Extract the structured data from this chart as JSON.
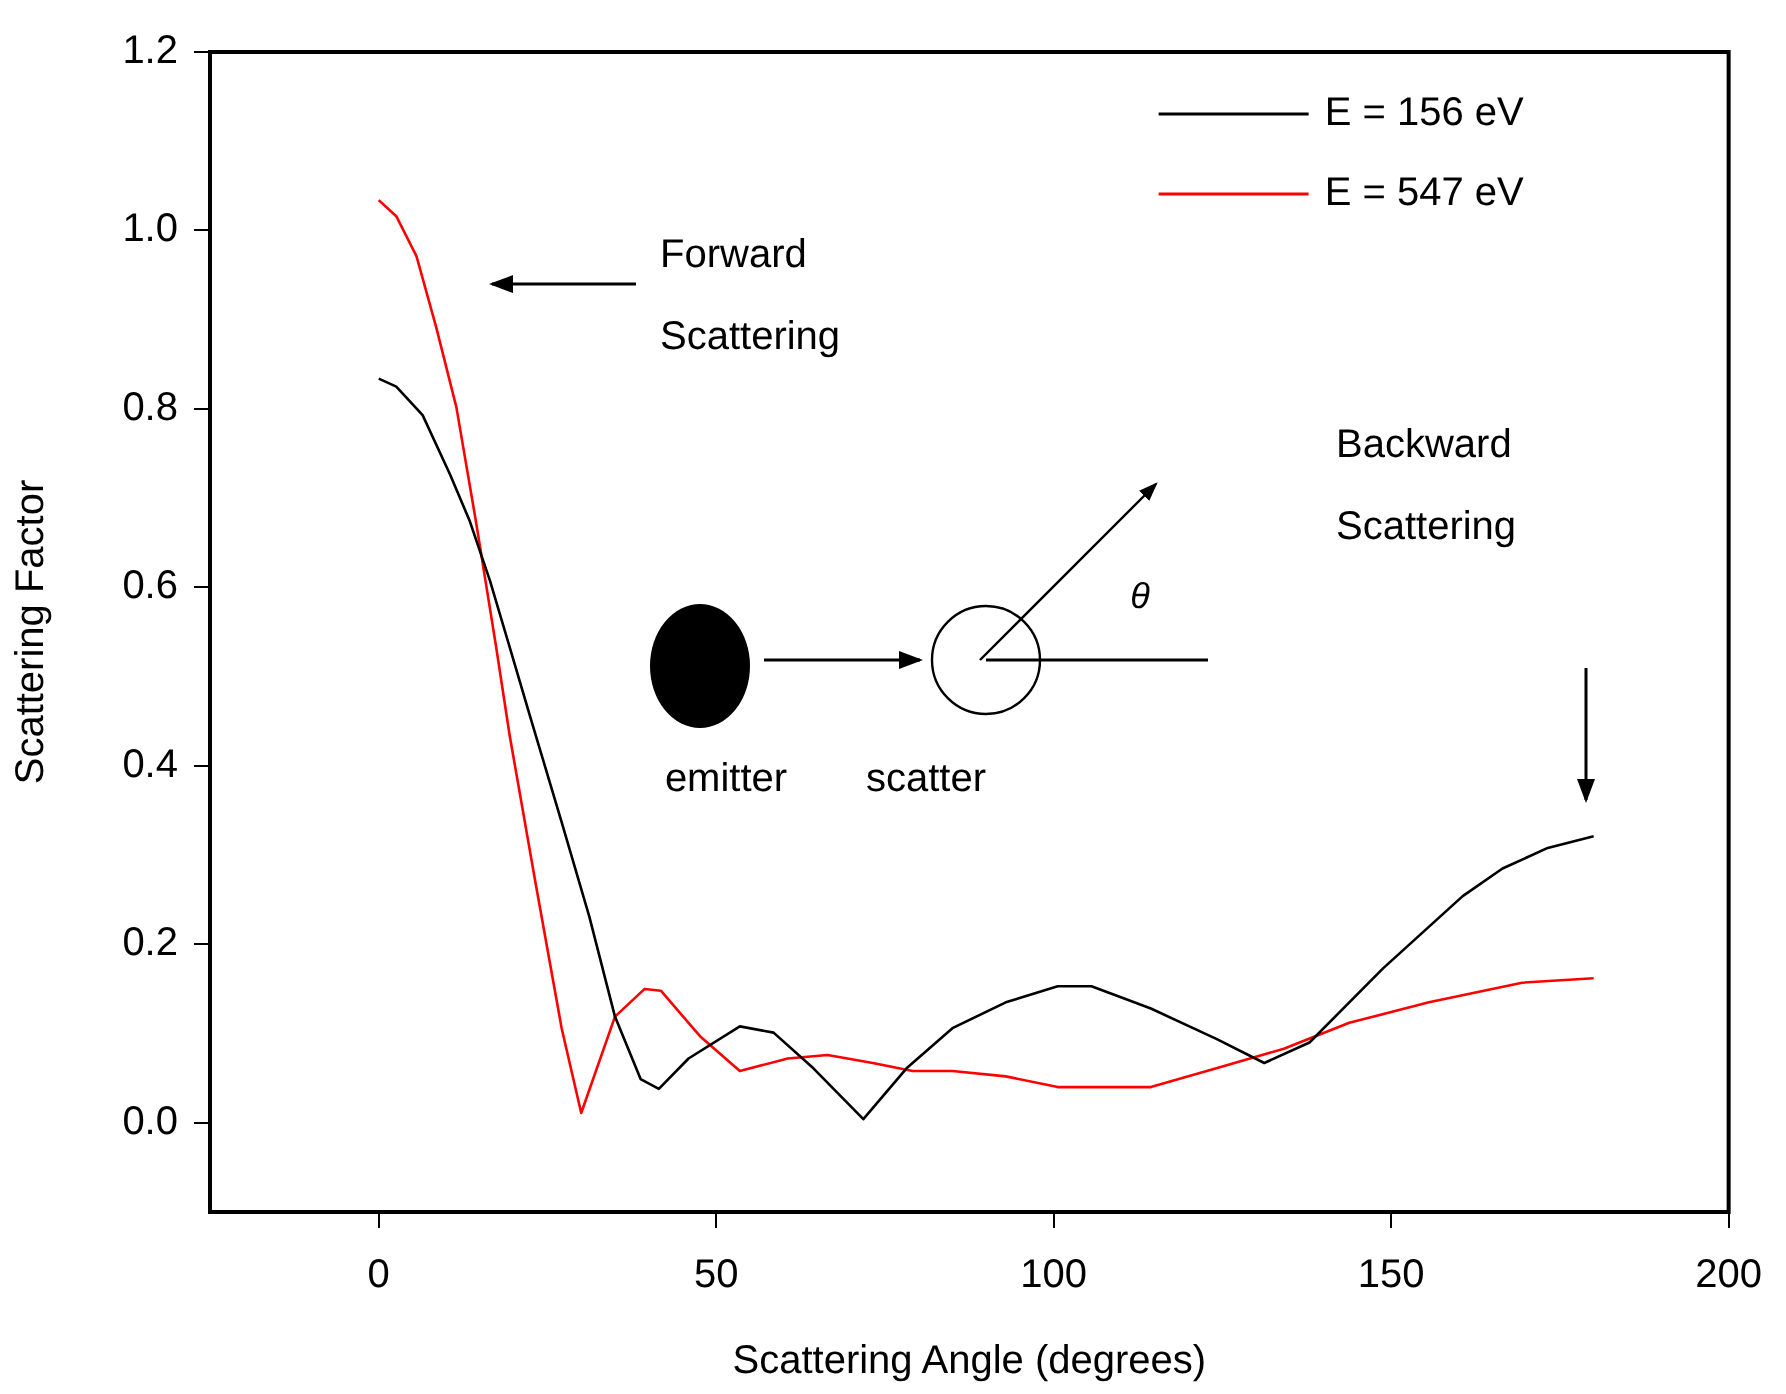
{
  "chart_data": {
    "type": "line",
    "xlabel": "Scattering Angle (degrees)",
    "ylabel": "Scattering Factor",
    "xlim": [
      -25,
      200
    ],
    "xticks": [
      0,
      50,
      100,
      150,
      200
    ],
    "ylim": [
      -0.1,
      1.2
    ],
    "yticks": [
      {
        "value": 0,
        "label": "0.0"
      },
      {
        "value": 0.2,
        "label": "0.2"
      },
      {
        "value": 0.4,
        "label": "0.4"
      },
      {
        "value": 0.6,
        "label": "0.6"
      },
      {
        "value": 0.8,
        "label": "0.8"
      },
      {
        "value": 1,
        "label": "1.0"
      },
      {
        "value": 1.2,
        "label": "1.2"
      }
    ],
    "legend": "top right",
    "annotations": [
      "Forward Scattering",
      "Backward Scattering",
      "emitter",
      "scatter",
      "θ"
    ],
    "series": [
      {
        "name": "E = 156 eV",
        "color": "#000000",
        "x": [
          0,
          2.6,
          6.5,
          10.6,
          13.5,
          16.5,
          19.4,
          22.4,
          27.1,
          31.2,
          35,
          38.8,
          41.5,
          45.9,
          53.5,
          58.5,
          64.4,
          71.8,
          78.2,
          85,
          92.9,
          100.6,
          105.6,
          114.4,
          124.1,
          131.2,
          137.9,
          148.8,
          160.6,
          166.5,
          173.2,
          180
        ],
        "values": [
          0.834,
          0.825,
          0.793,
          0.726,
          0.674,
          0.607,
          0.533,
          0.456,
          0.337,
          0.231,
          0.119,
          0.049,
          0.038,
          0.072,
          0.108,
          0.101,
          0.061,
          0.004,
          0.061,
          0.106,
          0.135,
          0.153,
          0.153,
          0.128,
          0.094,
          0.067,
          0.09,
          0.173,
          0.254,
          0.285,
          0.308,
          0.321
        ]
      },
      {
        "name": "E = 547 eV",
        "color": "#ff0000",
        "x": [
          0,
          2.6,
          5.6,
          8.5,
          11.5,
          14.4,
          17.4,
          19.4,
          23.2,
          27.1,
          30,
          35,
          39.4,
          41.8,
          47.6,
          53.5,
          60.6,
          66.5,
          73.2,
          79.1,
          85,
          92.9,
          100.6,
          114.4,
          124.1,
          134.1,
          143.8,
          155.6,
          169.4,
          180
        ],
        "values": [
          1.034,
          1.016,
          0.971,
          0.892,
          0.802,
          0.674,
          0.533,
          0.434,
          0.27,
          0.106,
          0.011,
          0.119,
          0.15,
          0.148,
          0.097,
          0.058,
          0.072,
          0.076,
          0.067,
          0.058,
          0.058,
          0.052,
          0.04,
          0.04,
          0.061,
          0.083,
          0.112,
          0.135,
          0.157,
          0.162
        ]
      }
    ]
  }
}
